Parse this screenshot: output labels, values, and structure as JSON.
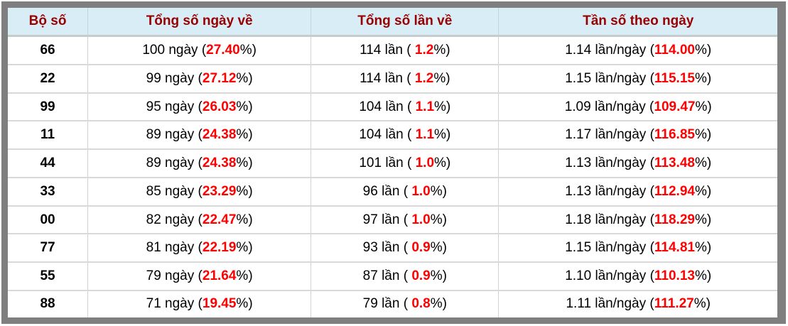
{
  "colors": {
    "header_bg": "#d9edf7",
    "header_text": "#990000",
    "value_highlight": "#ff0000",
    "frame_gray": "#7f7f7f",
    "row_border": "#d9d9d9"
  },
  "table": {
    "headers": [
      "Bộ số",
      "Tổng số ngày về",
      "Tổng số lần về",
      "Tần số theo ngày"
    ],
    "rows": [
      {
        "pair": "66",
        "days": {
          "prefix": "100 ngày (",
          "value": "27.40",
          "suffix": "%)"
        },
        "times": {
          "prefix": "114 lần ( ",
          "value": "1.2",
          "suffix": "%)"
        },
        "freq": {
          "prefix": "1.14 lần/ngày (",
          "value": "114.00",
          "suffix": "%)"
        }
      },
      {
        "pair": "22",
        "days": {
          "prefix": "99 ngày (",
          "value": "27.12",
          "suffix": "%)"
        },
        "times": {
          "prefix": "114 lần ( ",
          "value": "1.2",
          "suffix": "%)"
        },
        "freq": {
          "prefix": "1.15 lần/ngày (",
          "value": "115.15",
          "suffix": "%)"
        }
      },
      {
        "pair": "99",
        "days": {
          "prefix": "95 ngày (",
          "value": "26.03",
          "suffix": "%)"
        },
        "times": {
          "prefix": "104 lần ( ",
          "value": "1.1",
          "suffix": "%)"
        },
        "freq": {
          "prefix": "1.09 lần/ngày (",
          "value": "109.47",
          "suffix": "%)"
        }
      },
      {
        "pair": "11",
        "days": {
          "prefix": "89 ngày (",
          "value": "24.38",
          "suffix": "%)"
        },
        "times": {
          "prefix": "104 lần ( ",
          "value": "1.1",
          "suffix": "%)"
        },
        "freq": {
          "prefix": "1.17 lần/ngày (",
          "value": "116.85",
          "suffix": "%)"
        }
      },
      {
        "pair": "44",
        "days": {
          "prefix": "89 ngày (",
          "value": "24.38",
          "suffix": "%)"
        },
        "times": {
          "prefix": "101 lần ( ",
          "value": "1.0",
          "suffix": "%)"
        },
        "freq": {
          "prefix": "1.13 lần/ngày (",
          "value": "113.48",
          "suffix": "%)"
        }
      },
      {
        "pair": "33",
        "days": {
          "prefix": "85 ngày (",
          "value": "23.29",
          "suffix": "%)"
        },
        "times": {
          "prefix": "96 lần ( ",
          "value": "1.0",
          "suffix": "%)"
        },
        "freq": {
          "prefix": "1.13 lần/ngày (",
          "value": "112.94",
          "suffix": "%)"
        }
      },
      {
        "pair": "00",
        "days": {
          "prefix": "82 ngày (",
          "value": "22.47",
          "suffix": "%)"
        },
        "times": {
          "prefix": "97 lần ( ",
          "value": "1.0",
          "suffix": "%)"
        },
        "freq": {
          "prefix": "1.18 lần/ngày (",
          "value": "118.29",
          "suffix": "%)"
        }
      },
      {
        "pair": "77",
        "days": {
          "prefix": "81 ngày (",
          "value": "22.19",
          "suffix": "%)"
        },
        "times": {
          "prefix": "93 lần ( ",
          "value": "0.9",
          "suffix": "%)"
        },
        "freq": {
          "prefix": "1.15 lần/ngày (",
          "value": "114.81",
          "suffix": "%)"
        }
      },
      {
        "pair": "55",
        "days": {
          "prefix": "79 ngày (",
          "value": "21.64",
          "suffix": "%)"
        },
        "times": {
          "prefix": "87 lần ( ",
          "value": "0.9",
          "suffix": "%)"
        },
        "freq": {
          "prefix": "1.10 lần/ngày (",
          "value": "110.13",
          "suffix": "%)"
        }
      },
      {
        "pair": "88",
        "days": {
          "prefix": "71 ngày (",
          "value": "19.45",
          "suffix": "%)"
        },
        "times": {
          "prefix": "79 lần ( ",
          "value": "0.8",
          "suffix": "%)"
        },
        "freq": {
          "prefix": "1.11 lần/ngày (",
          "value": "111.27",
          "suffix": "%)"
        }
      }
    ]
  }
}
